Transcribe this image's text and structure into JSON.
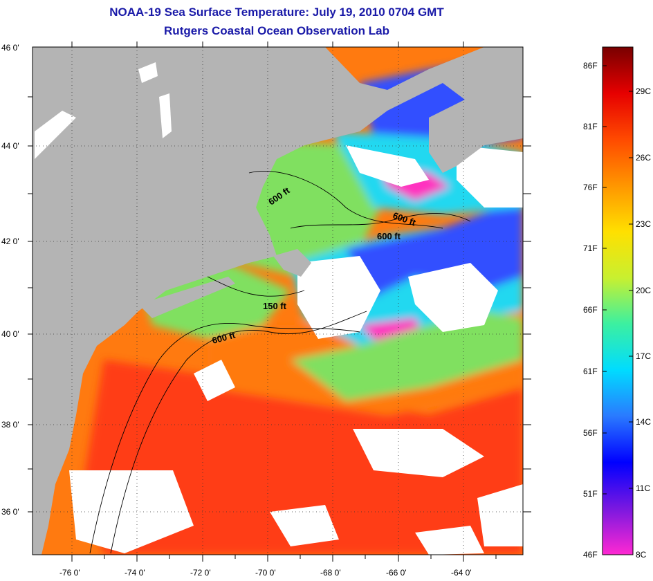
{
  "title": "NOAA-19 Sea Surface Temperature:  July 19, 2010 0704 GMT",
  "subtitle": "Rutgers Coastal Ocean Observation Lab",
  "map": {
    "lat_labels": [
      "46 0'",
      "44 0'",
      "42 0'",
      "40 0'",
      "38 0'",
      "36 0'"
    ],
    "lon_labels": [
      "-76 0'",
      "-74 0'",
      "-72 0'",
      "-70 0'",
      "-68 0'",
      "-66 0'",
      "-64 0'"
    ],
    "contour_labels": [
      "600 ft",
      "600 ft",
      "600 ft",
      "150 ft",
      "600 ft"
    ],
    "colors": {
      "land": "#b4b4b4",
      "cloud": "#ffffff",
      "warm": "#ff3c14",
      "orange": "#ff7a10",
      "yellow": "#f0f020",
      "green": "#80e060",
      "cyan": "#20d8f0",
      "blue": "#3050ff",
      "magenta": "#ff30c0"
    }
  },
  "colorbar": {
    "fahrenheit_labels": [
      "86F",
      "81F",
      "76F",
      "71F",
      "66F",
      "61F",
      "56F",
      "51F",
      "46F"
    ],
    "celsius_labels": [
      "29C",
      "26C",
      "23C",
      "20C",
      "17C",
      "14C",
      "11C",
      "8C"
    ],
    "gradient": [
      "#ff28d2",
      "#7a18e0",
      "#0000ff",
      "#2a7aff",
      "#00dcff",
      "#3cf0a0",
      "#c8f030",
      "#ffe000",
      "#ff9600",
      "#ff4a00",
      "#e60000",
      "#780000"
    ]
  }
}
